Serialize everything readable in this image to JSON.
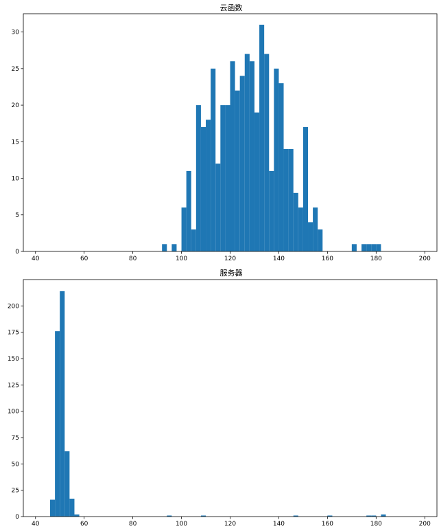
{
  "chart_data": [
    {
      "type": "bar",
      "title": "云函数",
      "xlabel": "",
      "ylabel": "",
      "xlim": [
        35,
        205
      ],
      "ylim": [
        0,
        32.5
      ],
      "xticks": [
        40,
        60,
        80,
        100,
        120,
        140,
        160,
        180,
        200
      ],
      "yticks": [
        0,
        5,
        10,
        15,
        20,
        25,
        30
      ],
      "bin_width": 2,
      "bin_starts": [
        92,
        96,
        100,
        102,
        104,
        106,
        108,
        110,
        112,
        114,
        116,
        118,
        120,
        122,
        124,
        126,
        128,
        130,
        132,
        134,
        136,
        138,
        140,
        142,
        144,
        146,
        148,
        150,
        152,
        154,
        156,
        170,
        174,
        176,
        178,
        180
      ],
      "values": [
        1,
        1,
        6,
        11,
        3,
        20,
        17,
        18,
        25,
        12,
        20,
        20,
        26,
        22,
        24,
        27,
        26,
        19,
        31,
        27,
        11,
        25,
        23,
        14,
        14,
        8,
        6,
        17,
        4,
        6,
        3,
        1,
        1,
        1,
        1,
        1
      ]
    },
    {
      "type": "bar",
      "title": "服务器",
      "xlabel": "",
      "ylabel": "",
      "xlim": [
        35,
        205
      ],
      "ylim": [
        0,
        225
      ],
      "xticks": [
        40,
        60,
        80,
        100,
        120,
        140,
        160,
        180,
        200
      ],
      "yticks": [
        0,
        25,
        50,
        75,
        100,
        125,
        150,
        175,
        200
      ],
      "bin_width": 2,
      "bin_starts": [
        46,
        48,
        50,
        52,
        54,
        56,
        94,
        108,
        146,
        160,
        176,
        178,
        182
      ],
      "values": [
        16,
        176,
        214,
        62,
        17,
        2,
        1,
        1,
        1,
        1,
        1,
        1,
        2
      ]
    }
  ],
  "colors": {
    "bar": "#1f77b4"
  }
}
